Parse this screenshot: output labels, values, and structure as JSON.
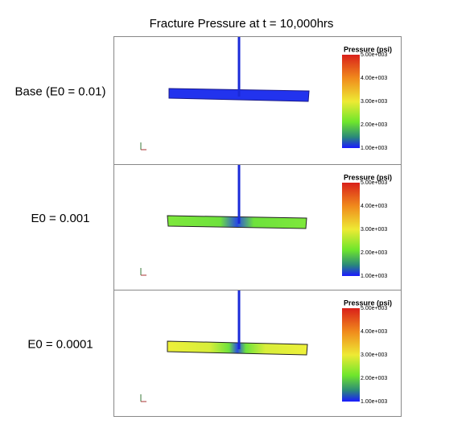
{
  "title": "Fracture Pressure at t = 10,000hrs",
  "panels": [
    {
      "label": "Base (E0 = 0.01)",
      "legend_title": "Pressure (psi)",
      "legend_ticks": [
        "5.00e+003",
        "4.00e+003",
        "3.00e+003",
        "2.00e+003",
        "1.00e+003"
      ]
    },
    {
      "label": "E0 = 0.001",
      "legend_title": "Pressure (psi)",
      "legend_ticks": [
        "5.00e+003",
        "4.00e+003",
        "3.00e+003",
        "2.00e+003",
        "1.00e+003"
      ]
    },
    {
      "label": "E0 = 0.0001",
      "legend_title": "Pressure (psi)",
      "legend_ticks": [
        "5.00e+003",
        "4.00e+003",
        "3.00e+003",
        "2.00e+003",
        "1.00e+003"
      ]
    }
  ]
}
